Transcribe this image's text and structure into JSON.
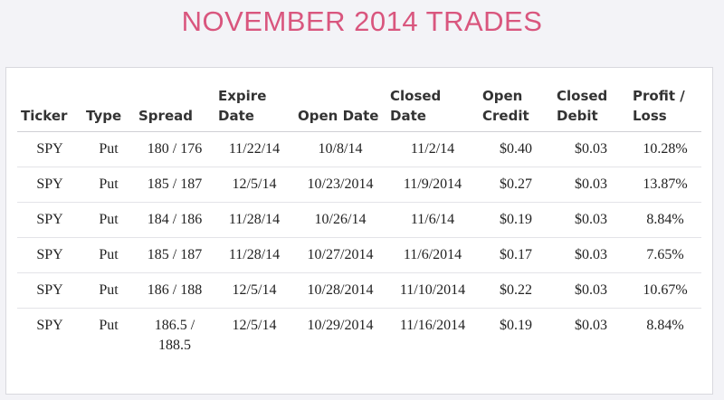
{
  "title": "NOVEMBER 2014 TRADES",
  "table": {
    "headers": [
      "Ticker",
      "Type",
      "Spread",
      "Expire Date",
      "Open Date",
      "Closed Date",
      "Open Credit",
      "Closed Debit",
      "Profit / Loss"
    ],
    "rows": [
      [
        "SPY",
        "Put",
        "180 / 176",
        "11/22/14",
        "10/8/14",
        "11/2/14",
        "$0.40",
        "$0.03",
        "10.28%"
      ],
      [
        "SPY",
        "Put",
        "185 / 187",
        "12/5/14",
        "10/23/2014",
        "11/9/2014",
        "$0.27",
        "$0.03",
        "13.87%"
      ],
      [
        "SPY",
        "Put",
        "184 / 186",
        "11/28/14",
        "10/26/14",
        "11/6/14",
        "$0.19",
        "$0.03",
        "8.84%"
      ],
      [
        "SPY",
        "Put",
        "185 / 187",
        "11/28/14",
        "10/27/2014",
        "11/6/2014",
        "$0.17",
        "$0.03",
        "7.65%"
      ],
      [
        "SPY",
        "Put",
        "186 / 188",
        "12/5/14",
        "10/28/2014",
        "11/10/2014",
        "$0.22",
        "$0.03",
        "10.67%"
      ],
      [
        "SPY",
        "Put",
        "186.5 / 188.5",
        "12/5/14",
        "10/29/2014",
        "11/16/2014",
        "$0.19",
        "$0.03",
        "8.84%"
      ]
    ]
  }
}
